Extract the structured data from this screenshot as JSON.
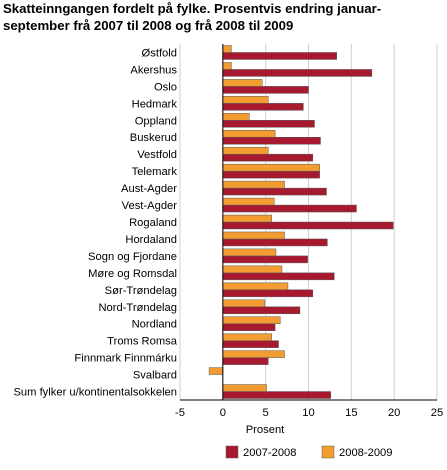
{
  "chart_data": {
    "type": "bar",
    "orientation": "horizontal",
    "title_lines": [
      "Skatteinngangen fordelt på fylke. Prosentvis endring januar-",
      "september frå 2007 til 2008 og frå 2008 til 2009"
    ],
    "categories": [
      "Østfold",
      "Akershus",
      "Oslo",
      "Hedmark",
      "Oppland",
      "Buskerud",
      "Vestfold",
      "Telemark",
      "Aust-Agder",
      "Vest-Agder",
      "Rogaland",
      "Hordaland",
      "Sogn og Fjordane",
      "Møre og Romsdal",
      "Sør-Trøndelag",
      "Nord-Trøndelag",
      "Nordland",
      "Troms Romsa",
      "Finnmark Finnmárku",
      "Svalbard",
      "Sum fylker u/kontinentalsokkelen"
    ],
    "series": [
      {
        "name": "2007-2008",
        "color": "#a6192e",
        "values": [
          13.3,
          17.4,
          10,
          9.4,
          10.7,
          11.4,
          10.5,
          11.3,
          12.1,
          15.6,
          19.9,
          12.2,
          9.9,
          13,
          10.5,
          9,
          6.1,
          6.5,
          5.3,
          0,
          12.6
        ]
      },
      {
        "name": "2008-2009",
        "color": "#f39c31",
        "values": [
          1,
          1,
          4.6,
          5.3,
          3.1,
          6.1,
          5.3,
          11.3,
          7.2,
          6,
          5.7,
          7.2,
          6.2,
          6.9,
          7.6,
          4.9,
          6.7,
          5.7,
          7.2,
          -1.6,
          5.1
        ]
      }
    ],
    "xlabel": "Prosent",
    "xlim": [
      -5,
      25
    ],
    "xticks": [
      "-5",
      "0",
      "5",
      "10",
      "15",
      "20",
      "25"
    ],
    "grid": "vertical",
    "legend_position": "bottom-right"
  }
}
